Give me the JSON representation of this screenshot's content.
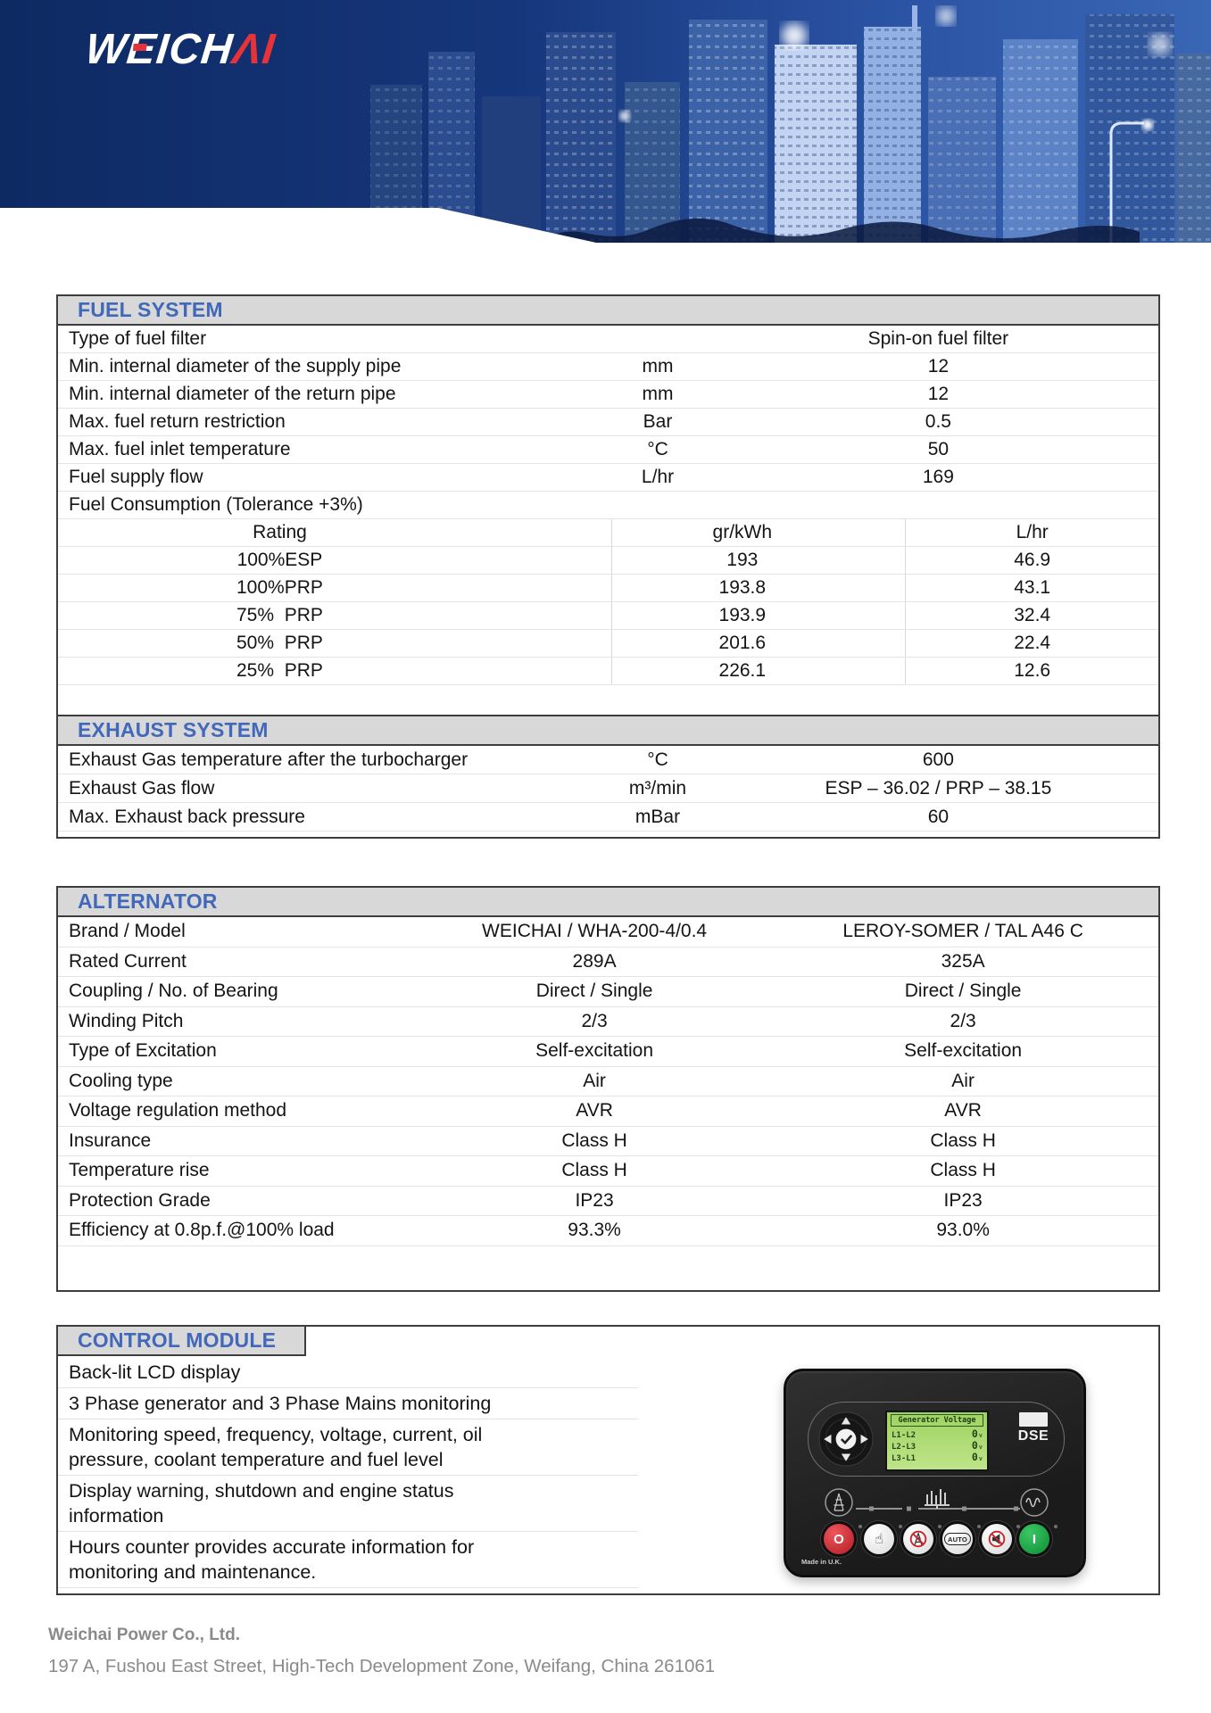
{
  "header": {
    "logo": {
      "w1": "W",
      "e": "E",
      "w2": "ICH",
      "red": "ΛI"
    }
  },
  "sections": {
    "fuel_system": {
      "title": "FUEL SYSTEM",
      "rows": [
        {
          "label": "Type of fuel filter",
          "unit": "",
          "value": "Spin-on fuel filter"
        },
        {
          "label": "Min. internal diameter of the supply pipe",
          "unit": "mm",
          "value": "12"
        },
        {
          "label": "Min. internal diameter of the return pipe",
          "unit": "mm",
          "value": "12"
        },
        {
          "label": "Max. fuel return restriction",
          "unit": "Bar",
          "value": "0.5"
        },
        {
          "label": "Max. fuel inlet temperature",
          "unit": "°C",
          "value": "50"
        },
        {
          "label": "Fuel supply flow",
          "unit": "L/hr",
          "value": "169"
        },
        {
          "label": "Fuel Consumption (Tolerance +3%)",
          "unit": "",
          "value": ""
        }
      ],
      "consumption_table": {
        "headers": [
          "Rating",
          "gr/kWh",
          "L/hr"
        ],
        "rows": [
          [
            "100%ESP",
            "193",
            "46.9"
          ],
          [
            "100%PRP",
            "193.8",
            "43.1"
          ],
          [
            "75%  PRP",
            "193.9",
            "32.4"
          ],
          [
            "50%  PRP",
            "201.6",
            "22.4"
          ],
          [
            "25%  PRP",
            "226.1",
            "12.6"
          ]
        ]
      }
    },
    "exhaust_system": {
      "title": "EXHAUST SYSTEM",
      "rows": [
        {
          "label": "Exhaust Gas temperature after the turbocharger",
          "unit": "°C",
          "value": "600"
        },
        {
          "label": "Exhaust Gas flow",
          "unit": "m³/min",
          "value": "ESP – 36.02 / PRP – 38.15"
        },
        {
          "label": "Max. Exhaust back pressure",
          "unit": "mBar",
          "value": "60"
        }
      ]
    },
    "alternator": {
      "title": "ALTERNATOR",
      "rows": [
        {
          "label": "Brand / Model",
          "col1": "WEICHAI / WHA-200-4/0.4",
          "col2": "LEROY-SOMER / TAL A46 C"
        },
        {
          "label": "Rated Current",
          "col1": "289A",
          "col2": "325A"
        },
        {
          "label": "Coupling / No. of Bearing",
          "col1": "Direct / Single",
          "col2": "Direct / Single"
        },
        {
          "label": "Winding Pitch",
          "col1": "2/3",
          "col2": "2/3"
        },
        {
          "label": "Type of Excitation",
          "col1": "Self-excitation",
          "col2": "Self-excitation"
        },
        {
          "label": "Cooling type",
          "col1": "Air",
          "col2": "Air"
        },
        {
          "label": "Voltage regulation method",
          "col1": "AVR",
          "col2": "AVR"
        },
        {
          "label": "Insurance",
          "col1": "Class H",
          "col2": "Class H"
        },
        {
          "label": "Temperature rise",
          "col1": "Class H",
          "col2": "Class H"
        },
        {
          "label": "Protection Grade",
          "col1": "IP23",
          "col2": "IP23"
        },
        {
          "label": "Efficiency at 0.8p.f.@100% load",
          "col1": "93.3%",
          "col2": "93.0%"
        }
      ]
    },
    "control_module": {
      "title": "CONTROL MODULE",
      "features": [
        "Back-lit LCD display",
        "3 Phase generator and 3 Phase Mains monitoring",
        "Monitoring speed, frequency, voltage, current, oil pressure, coolant temperature and fuel level",
        "Display warning, shutdown and engine status information",
        "Hours counter provides accurate information for monitoring and maintenance."
      ]
    }
  },
  "module_panel": {
    "brand": "DSE",
    "made_in": "Made in U.K.",
    "lcd": {
      "title": "Generator Voltage",
      "rows": [
        {
          "label": "L1-L2",
          "value": "0",
          "unit": "v"
        },
        {
          "label": "L2-L3",
          "value": "0",
          "unit": "v"
        },
        {
          "label": "L3-L1",
          "value": "0",
          "unit": "v"
        }
      ]
    },
    "buttons": {
      "stop": "O",
      "auto": "AUTO",
      "start": "I"
    }
  },
  "footer": {
    "company": "Weichai Power Co., Ltd.",
    "address": "197 A, Fushou East Street, High-Tech Development Zone, Weifang, China 261061"
  },
  "colors": {
    "section_title_blue": "#4268b9",
    "header_bar_gray": "#d8d8d8",
    "logo_red": "#e6333a",
    "header_navy": "#0e2a63",
    "lcd_green": "#a8d96e",
    "stop_red": "#b11b23",
    "start_green": "#0e8c33"
  }
}
